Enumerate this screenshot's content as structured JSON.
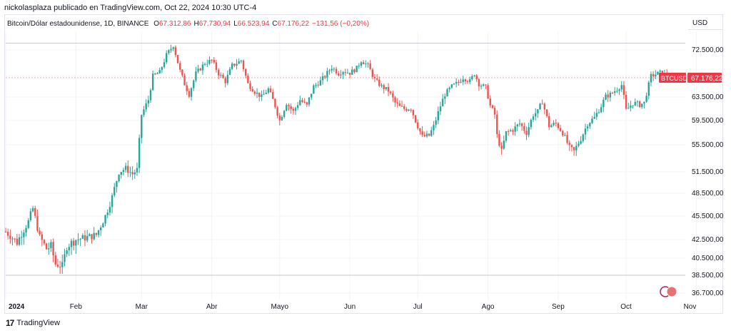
{
  "header": {
    "credit": "nickolasplaza publicado en TradingView.com, Oct 22, 2024 10:30 UTC-4",
    "symbol": "Bitcoin/Dólar estadounidense, 1D, BINANCE",
    "ohlc": [
      {
        "label": "O",
        "value": "67.312,86"
      },
      {
        "label": "H",
        "value": "67.730,94"
      },
      {
        "label": "L",
        "value": "66.523,94"
      },
      {
        "label": "C",
        "value": "67.176,22"
      },
      {
        "label": "",
        "value": "−131,56 (−0,20%)"
      }
    ]
  },
  "currency": "USD",
  "price_tag": {
    "symbol": "BTCUSD",
    "price": "67.176,22",
    "value": 67176.22
  },
  "footer": {
    "logo": "17",
    "brand": "TradingView"
  },
  "chart_data": {
    "type": "candlestick",
    "x_ticks": [
      "2024",
      "Feb",
      "Mar",
      "Abr",
      "Mayo",
      "Jun",
      "Jul",
      "Ago",
      "Sep",
      "Oct",
      "Nov"
    ],
    "x_tick_pos": [
      0,
      31,
      60,
      91,
      121,
      152,
      182,
      213,
      244,
      274,
      305
    ],
    "y_ticks": [
      {
        "v": 72500,
        "t": "72.500,00"
      },
      {
        "v": 67176.22,
        "t": "67.176,22"
      },
      {
        "v": 63500,
        "t": "63.500,00"
      },
      {
        "v": 59500,
        "t": "59.500,00"
      },
      {
        "v": 55500,
        "t": "55.500,00"
      },
      {
        "v": 51500,
        "t": "51.500,00"
      },
      {
        "v": 48500,
        "t": "48.500,00"
      },
      {
        "v": 45500,
        "t": "45.500,00"
      },
      {
        "v": 42500,
        "t": "42.500,00"
      },
      {
        "v": 40500,
        "t": "40.500,00"
      },
      {
        "v": 38500,
        "t": "38.500,00"
      },
      {
        "v": 36700,
        "t": "36.700,00"
      }
    ],
    "hlines": [
      73800,
      67176.22,
      38500
    ],
    "up_color": "#26a69a",
    "down_color": "#ef5350",
    "closes": [
      [
        0,
        43500
      ],
      [
        5,
        42200
      ],
      [
        10,
        44800
      ],
      [
        12,
        46500
      ],
      [
        15,
        42800
      ],
      [
        18,
        41500
      ],
      [
        20,
        41800
      ],
      [
        22,
        39800
      ],
      [
        25,
        39600
      ],
      [
        27,
        41800
      ],
      [
        31,
        42500
      ],
      [
        36,
        42800
      ],
      [
        40,
        43100
      ],
      [
        44,
        45500
      ],
      [
        47,
        48000
      ],
      [
        50,
        51500
      ],
      [
        53,
        52000
      ],
      [
        56,
        51200
      ],
      [
        58,
        51800
      ],
      [
        60,
        60500
      ],
      [
        63,
        63000
      ],
      [
        65,
        67500
      ],
      [
        68,
        68200
      ],
      [
        71,
        71500
      ],
      [
        74,
        73400
      ],
      [
        77,
        68500
      ],
      [
        79,
        66000
      ],
      [
        81,
        64000
      ],
      [
        84,
        68000
      ],
      [
        88,
        70000
      ],
      [
        91,
        70500
      ],
      [
        94,
        68000
      ],
      [
        97,
        66500
      ],
      [
        100,
        69500
      ],
      [
        104,
        70500
      ],
      [
        107,
        66000
      ],
      [
        110,
        64500
      ],
      [
        113,
        63500
      ],
      [
        116,
        65000
      ],
      [
        119,
        62000
      ],
      [
        121,
        59500
      ],
      [
        124,
        62500
      ],
      [
        127,
        61000
      ],
      [
        130,
        63000
      ],
      [
        133,
        62000
      ],
      [
        136,
        65500
      ],
      [
        139,
        66500
      ],
      [
        141,
        67500
      ],
      [
        144,
        69200
      ],
      [
        147,
        68000
      ],
      [
        149,
        68500
      ],
      [
        152,
        68100
      ],
      [
        155,
        69000
      ],
      [
        157,
        70500
      ],
      [
        160,
        69500
      ],
      [
        163,
        66800
      ],
      [
        166,
        65500
      ],
      [
        169,
        64700
      ],
      [
        172,
        62500
      ],
      [
        174,
        61800
      ],
      [
        176,
        61500
      ],
      [
        179,
        61600
      ],
      [
        181,
        59500
      ],
      [
        184,
        56800
      ],
      [
        187,
        57000
      ],
      [
        189,
        58500
      ],
      [
        192,
        62000
      ],
      [
        194,
        64000
      ],
      [
        197,
        65500
      ],
      [
        200,
        66300
      ],
      [
        202,
        67200
      ],
      [
        205,
        66500
      ],
      [
        207,
        68000
      ],
      [
        209,
        66000
      ],
      [
        212,
        65300
      ],
      [
        214,
        62000
      ],
      [
        216,
        60500
      ],
      [
        217,
        57000
      ],
      [
        219,
        54500
      ],
      [
        221,
        57500
      ],
      [
        224,
        58000
      ],
      [
        227,
        59000
      ],
      [
        230,
        57500
      ],
      [
        233,
        60500
      ],
      [
        235,
        61000
      ],
      [
        237,
        62800
      ],
      [
        240,
        58600
      ],
      [
        243,
        59000
      ],
      [
        246,
        57500
      ],
      [
        249,
        55000
      ],
      [
        251,
        54500
      ],
      [
        254,
        56500
      ],
      [
        257,
        59000
      ],
      [
        260,
        60000
      ],
      [
        263,
        62000
      ],
      [
        265,
        63600
      ],
      [
        267,
        64000
      ],
      [
        270,
        65000
      ],
      [
        272,
        65800
      ],
      [
        274,
        61200
      ],
      [
        277,
        62500
      ],
      [
        280,
        62200
      ],
      [
        282,
        62500
      ],
      [
        285,
        67500
      ],
      [
        288,
        68000
      ],
      [
        290,
        68200
      ],
      [
        292,
        67300
      ]
    ]
  }
}
